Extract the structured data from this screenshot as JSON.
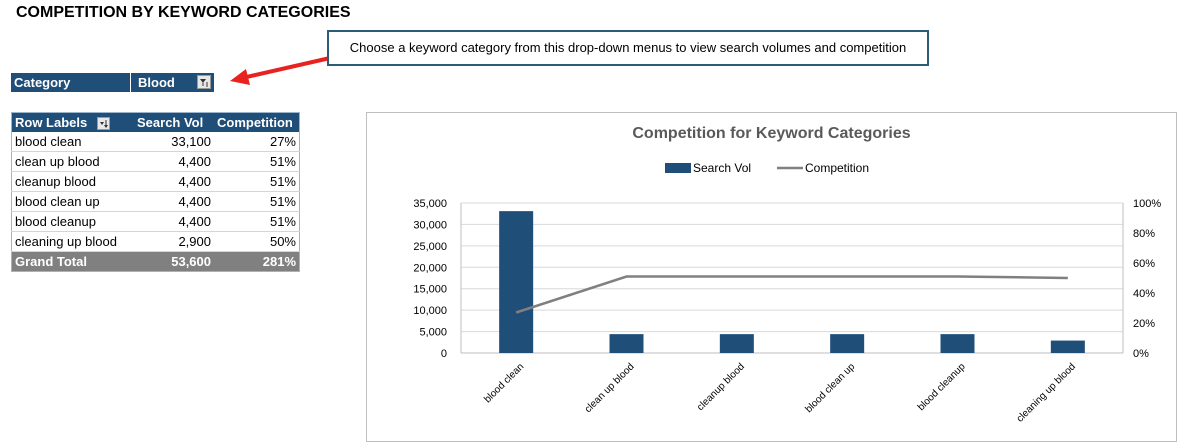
{
  "page": {
    "title": "COMPETITION BY KEYWORD CATEGORIES"
  },
  "callout": {
    "text": "Choose a keyword category from this drop-down menus to view search volumes and competition"
  },
  "filter": {
    "label": "Category",
    "value": "Blood"
  },
  "pivot": {
    "headers": [
      "Row Labels",
      "Search Vol",
      "Competition"
    ],
    "rows": [
      [
        "blood clean",
        "33,100",
        "27%"
      ],
      [
        "clean up blood",
        "4,400",
        "51%"
      ],
      [
        "cleanup blood",
        "4,400",
        "51%"
      ],
      [
        "blood clean up",
        "4,400",
        "51%"
      ],
      [
        "blood cleanup",
        "4,400",
        "51%"
      ],
      [
        "cleaning up blood",
        "2,900",
        "50%"
      ]
    ],
    "total": [
      "Grand Total",
      "53,600",
      "281%"
    ]
  },
  "colors": {
    "bar": "#1f4e79",
    "line": "#808080",
    "header": "#1f4e79",
    "total": "#808080"
  },
  "chart_data": {
    "type": "bar",
    "title": "Competition for Keyword Categories",
    "categories": [
      "blood clean",
      "clean up blood",
      "cleanup blood",
      "blood clean up",
      "blood cleanup",
      "cleaning up blood"
    ],
    "series": [
      {
        "name": "Search Vol",
        "type": "bar",
        "axis": "left",
        "values": [
          33100,
          4400,
          4400,
          4400,
          4400,
          2900
        ]
      },
      {
        "name": "Competition",
        "type": "line",
        "axis": "right",
        "values": [
          0.27,
          0.51,
          0.51,
          0.51,
          0.51,
          0.5
        ]
      }
    ],
    "ylim": [
      0,
      35000
    ],
    "yticks": [
      "0",
      "5,000",
      "10,000",
      "15,000",
      "20,000",
      "25,000",
      "30,000",
      "35,000"
    ],
    "y2lim": [
      0,
      1
    ],
    "y2ticks": [
      "0%",
      "20%",
      "40%",
      "60%",
      "80%",
      "100%"
    ],
    "legend": "top",
    "grid": true
  }
}
